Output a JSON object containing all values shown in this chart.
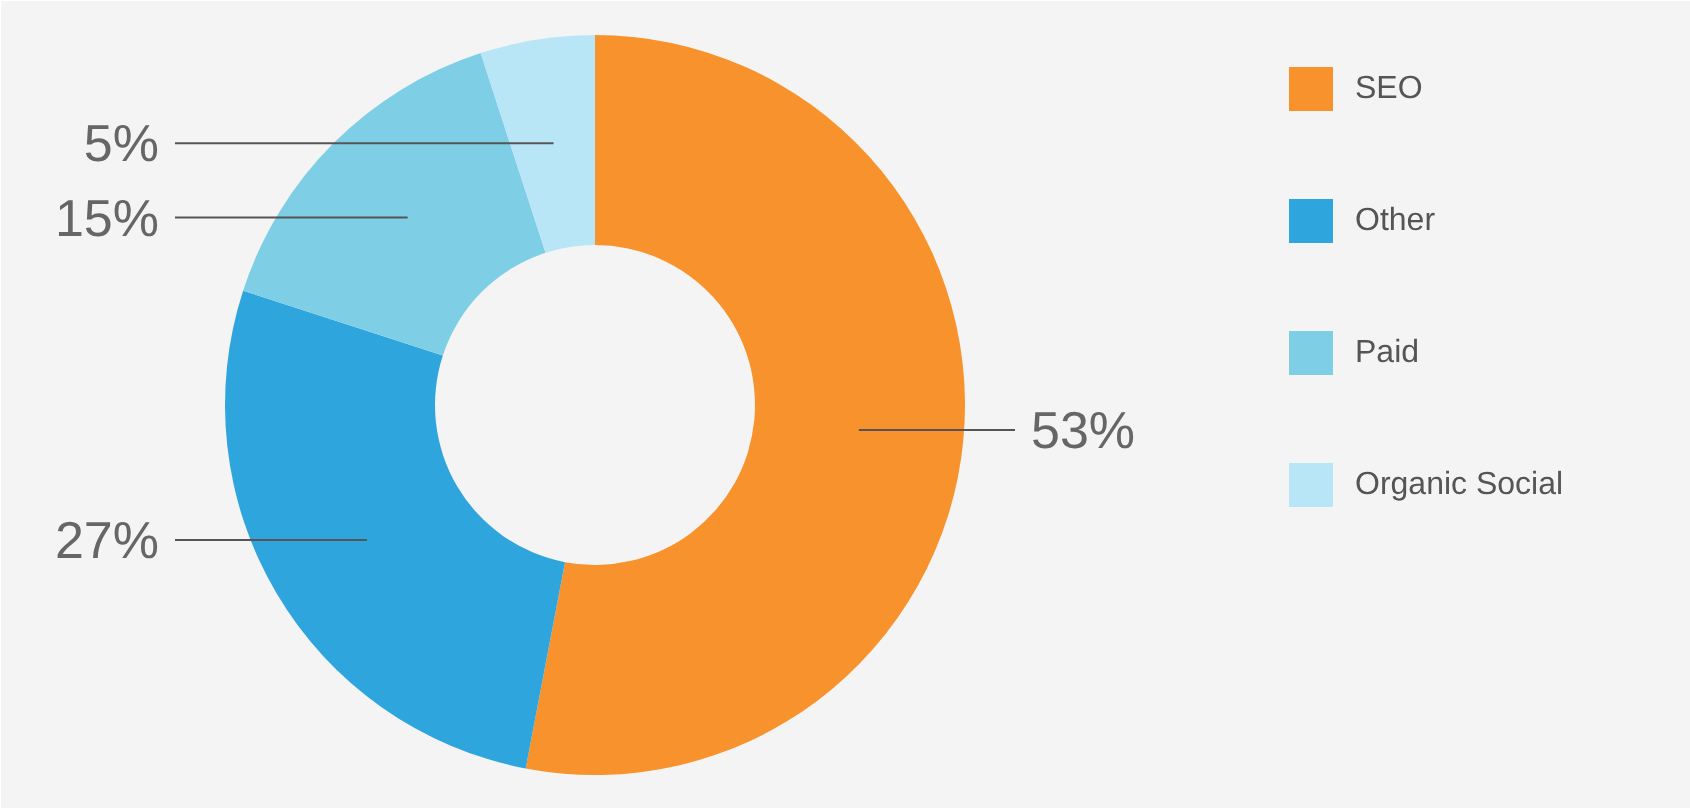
{
  "chart_data": {
    "type": "donut",
    "categories": [
      "SEO",
      "Other",
      "Paid",
      "Organic Social"
    ],
    "values": [
      53,
      27,
      15,
      5
    ],
    "colors": [
      "#f7922c",
      "#2ea5dc",
      "#7ecfe6",
      "#b8e6f7"
    ],
    "value_labels": [
      "53%",
      "27%",
      "15%",
      "5%"
    ],
    "legend": "right"
  }
}
